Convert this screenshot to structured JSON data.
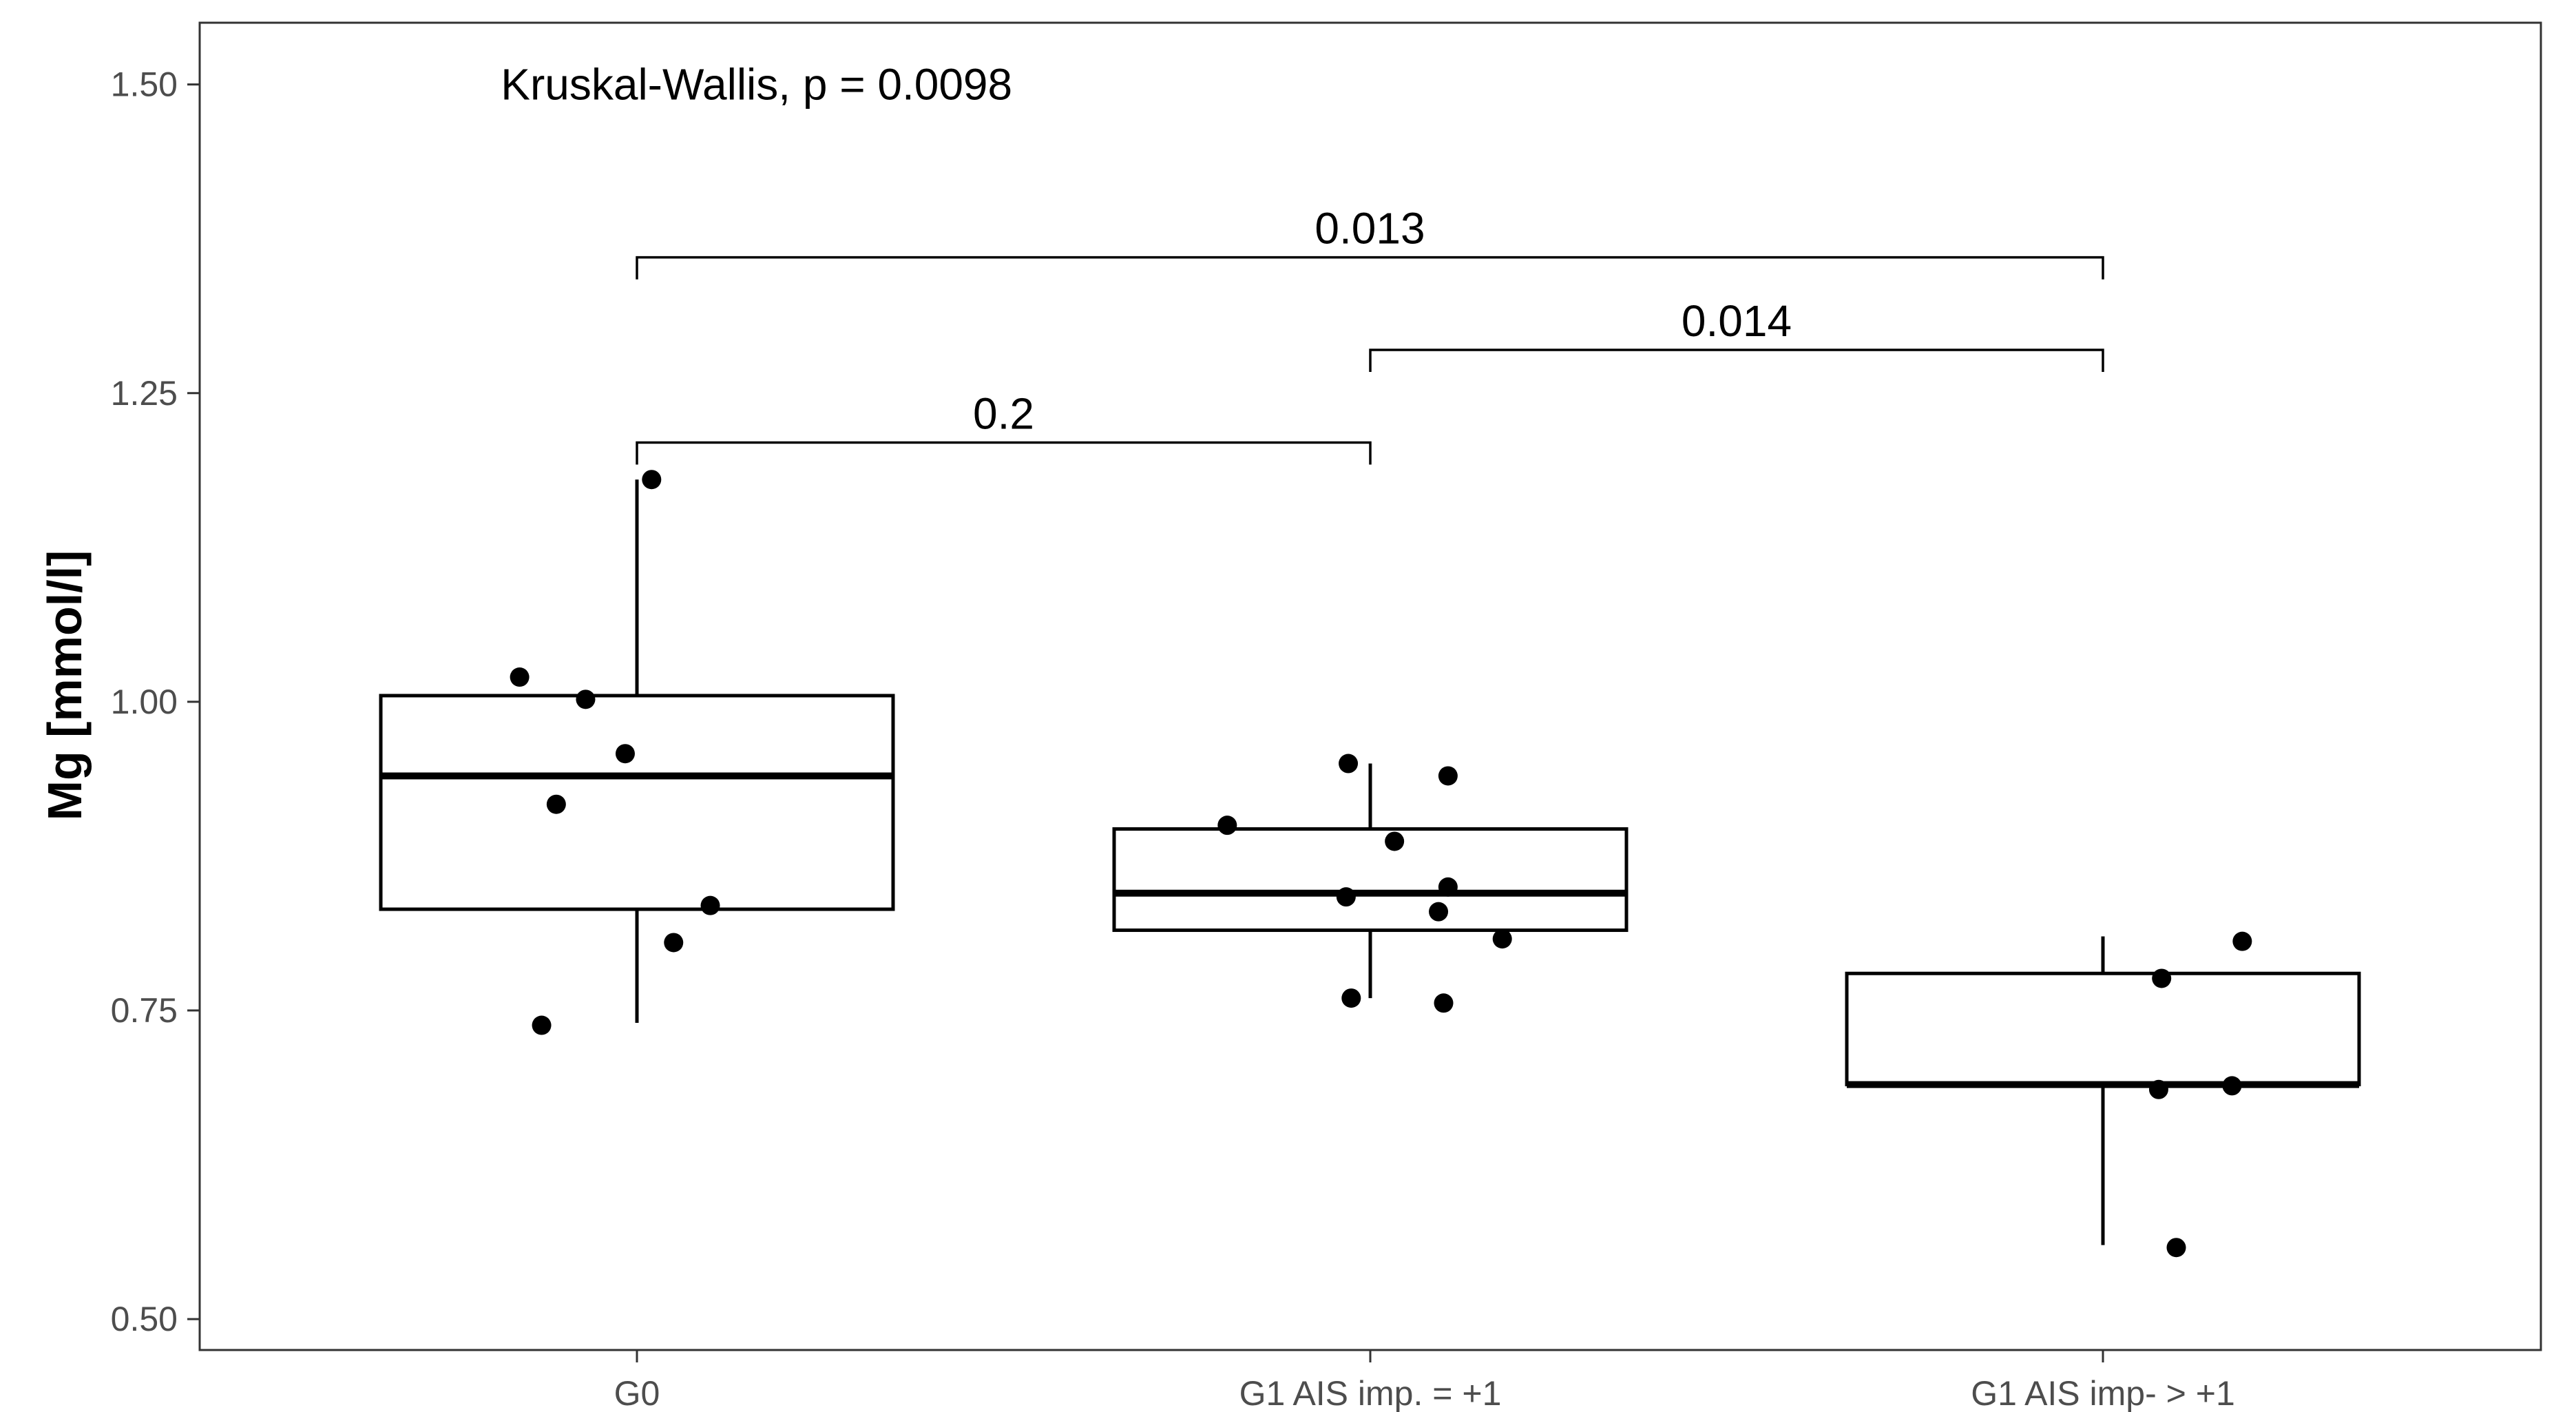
{
  "chart_data": {
    "type": "boxplot",
    "ylabel": "Mg [mmol/l]",
    "xlabel": "",
    "ylim": [
      0.475,
      1.55
    ],
    "yticks": [
      0.5,
      0.75,
      1.0,
      1.25,
      1.5
    ],
    "ytick_labels": [
      "0.50",
      "0.75",
      "1.00",
      "1.25",
      "1.50"
    ],
    "grid": false,
    "categories": [
      "G0",
      "G1 AIS imp. = +1",
      "G1 AIS imp- > +1"
    ],
    "boxes": [
      {
        "category": "G0",
        "q1": 0.832,
        "median": 0.94,
        "q3": 1.005,
        "whisker_low": 0.74,
        "whisker_high": 1.18
      },
      {
        "category": "G1 AIS imp. = +1",
        "q1": 0.815,
        "median": 0.845,
        "q3": 0.897,
        "whisker_low": 0.76,
        "whisker_high": 0.95
      },
      {
        "category": "G1 AIS imp- > +1",
        "q1": 0.69,
        "median": 0.69,
        "q3": 0.78,
        "whisker_low": 0.56,
        "whisker_high": 0.81
      }
    ],
    "points": [
      {
        "category": "G0",
        "jitter": 0.02,
        "y": 1.18
      },
      {
        "category": "G0",
        "jitter": -0.16,
        "y": 1.02
      },
      {
        "category": "G0",
        "jitter": -0.07,
        "y": 1.002
      },
      {
        "category": "G0",
        "jitter": -0.016,
        "y": 0.958
      },
      {
        "category": "G0",
        "jitter": -0.11,
        "y": 0.917
      },
      {
        "category": "G0",
        "jitter": 0.1,
        "y": 0.835
      },
      {
        "category": "G0",
        "jitter": 0.05,
        "y": 0.805
      },
      {
        "category": "G0",
        "jitter": -0.13,
        "y": 0.738
      },
      {
        "category": "G1 AIS imp. = +1",
        "jitter": -0.03,
        "y": 0.95
      },
      {
        "category": "G1 AIS imp. = +1",
        "jitter": 0.106,
        "y": 0.94
      },
      {
        "category": "G1 AIS imp. = +1",
        "jitter": -0.195,
        "y": 0.9
      },
      {
        "category": "G1 AIS imp. = +1",
        "jitter": 0.033,
        "y": 0.887
      },
      {
        "category": "G1 AIS imp. = +1",
        "jitter": 0.106,
        "y": 0.85
      },
      {
        "category": "G1 AIS imp. = +1",
        "jitter": -0.033,
        "y": 0.842
      },
      {
        "category": "G1 AIS imp. = +1",
        "jitter": 0.093,
        "y": 0.83
      },
      {
        "category": "G1 AIS imp. = +1",
        "jitter": 0.18,
        "y": 0.808
      },
      {
        "category": "G1 AIS imp. = +1",
        "jitter": -0.026,
        "y": 0.76
      },
      {
        "category": "G1 AIS imp. = +1",
        "jitter": 0.1,
        "y": 0.756
      },
      {
        "category": "G1 AIS imp- > +1",
        "jitter": 0.19,
        "y": 0.806
      },
      {
        "category": "G1 AIS imp- > +1",
        "jitter": 0.08,
        "y": 0.776
      },
      {
        "category": "G1 AIS imp- > +1",
        "jitter": 0.176,
        "y": 0.689
      },
      {
        "category": "G1 AIS imp- > +1",
        "jitter": 0.076,
        "y": 0.686
      },
      {
        "category": "G1 AIS imp- > +1",
        "jitter": 0.1,
        "y": 0.558
      }
    ],
    "comparisons": [
      {
        "from": "G0",
        "to": "G1 AIS imp. = +1",
        "y": 1.21,
        "label": "0.2"
      },
      {
        "from": "G1 AIS imp. = +1",
        "to": "G1 AIS imp- > +1",
        "y": 1.285,
        "label": "0.014"
      },
      {
        "from": "G0",
        "to": "G1 AIS imp- > +1",
        "y": 1.36,
        "label": "0.013"
      }
    ],
    "annotation": {
      "text": "Kruskal-Wallis, p = 0.0098",
      "x_category_offset": -0.15,
      "y": 1.5
    }
  }
}
